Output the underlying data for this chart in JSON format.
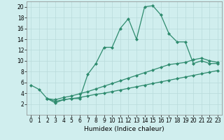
{
  "line1_x": [
    0,
    1,
    2,
    3,
    4,
    5,
    6,
    7,
    8,
    9,
    10,
    11,
    12,
    13,
    14,
    15,
    16,
    17,
    18,
    19,
    20,
    21,
    22,
    23
  ],
  "line1_y": [
    5.5,
    4.7,
    3.0,
    2.2,
    2.8,
    3.0,
    3.0,
    7.5,
    9.5,
    12.5,
    12.5,
    16.0,
    17.8,
    14.0,
    20.0,
    20.2,
    18.5,
    15.0,
    13.5,
    13.5,
    9.5,
    10.0,
    9.5,
    9.5
  ],
  "line2_x": [
    2,
    3,
    4,
    5,
    6,
    7,
    8,
    9,
    10,
    11,
    12,
    13,
    14,
    15,
    16,
    17,
    18,
    19,
    20,
    21,
    22,
    23
  ],
  "line2_y": [
    3.0,
    2.8,
    3.2,
    3.5,
    3.9,
    4.3,
    4.8,
    5.3,
    5.8,
    6.3,
    6.8,
    7.3,
    7.8,
    8.3,
    8.8,
    9.3,
    9.5,
    9.7,
    10.2,
    10.5,
    10.0,
    9.7
  ],
  "line3_x": [
    2,
    3,
    4,
    5,
    6,
    7,
    8,
    9,
    10,
    11,
    12,
    13,
    14,
    15,
    16,
    17,
    18,
    19,
    20,
    21,
    22,
    23
  ],
  "line3_y": [
    3.0,
    2.5,
    2.8,
    3.0,
    3.2,
    3.5,
    3.8,
    4.0,
    4.3,
    4.6,
    4.9,
    5.2,
    5.5,
    5.8,
    6.1,
    6.4,
    6.7,
    7.0,
    7.3,
    7.6,
    7.9,
    8.2
  ],
  "line_color": "#2e8b6e",
  "bg_color": "#d0eeee",
  "grid_color": "#b8dada",
  "xlabel": "Humidex (Indice chaleur)",
  "xlim": [
    -0.5,
    23.5
  ],
  "ylim": [
    0,
    21
  ],
  "xticks": [
    0,
    1,
    2,
    3,
    4,
    5,
    6,
    7,
    8,
    9,
    10,
    11,
    12,
    13,
    14,
    15,
    16,
    17,
    18,
    19,
    20,
    21,
    22,
    23
  ],
  "yticks": [
    2,
    4,
    6,
    8,
    10,
    12,
    14,
    16,
    18,
    20
  ],
  "marker": "D",
  "markersize": 2,
  "linewidth": 0.9,
  "xlabel_fontsize": 6.5,
  "tick_fontsize": 5.5
}
